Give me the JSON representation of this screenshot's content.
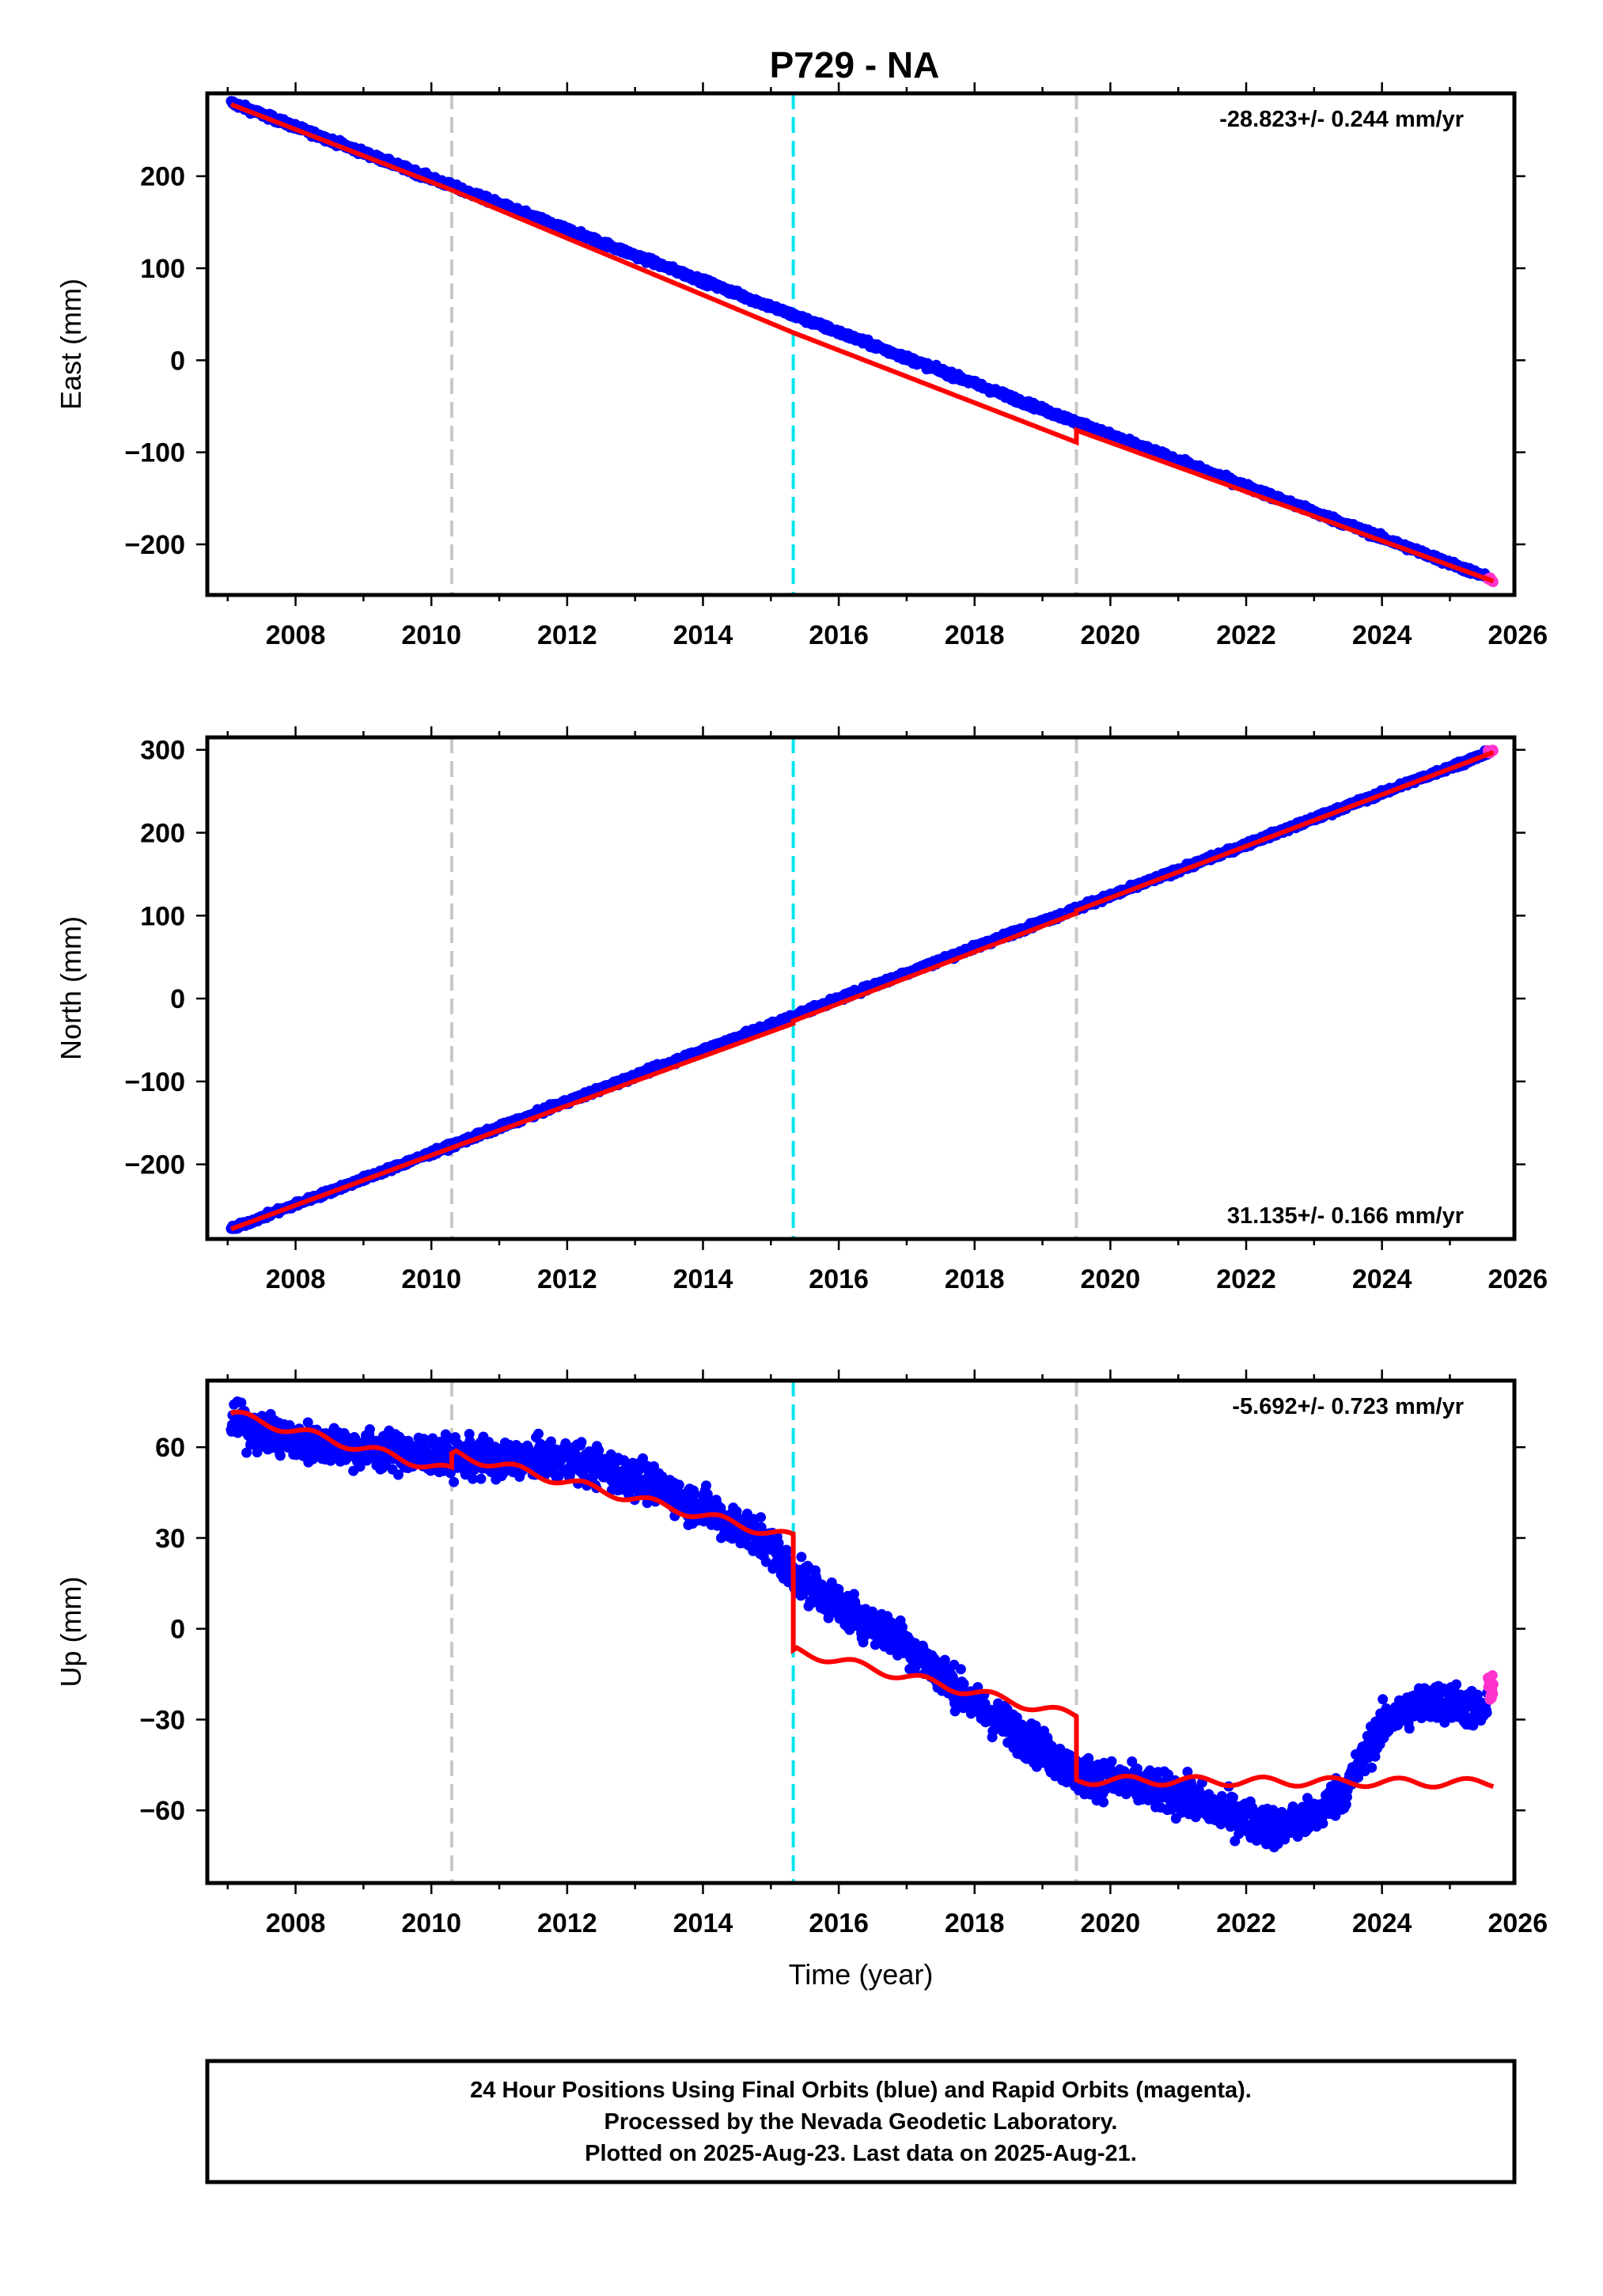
{
  "title": "P729 - NA",
  "colors": {
    "final_orbits": "#0000ff",
    "rapid_orbits": "#ff33cc",
    "model": "#ff0000",
    "equipment_change": "#c8c8c8",
    "earthquake": "#00e5ee"
  },
  "chart_data": [
    {
      "type": "scatter",
      "name": "east",
      "ylabel": "East (mm)",
      "xlim": [
        2006.7,
        2025.95
      ],
      "ylim": [
        -255,
        290
      ],
      "xticks": [
        2008,
        2010,
        2012,
        2014,
        2016,
        2018,
        2020,
        2022,
        2024,
        2026
      ],
      "yticks": [
        -200,
        -100,
        0,
        100,
        200
      ],
      "rate": "-28.823+/- 0.244 mm/yr",
      "vertical_lines": [
        {
          "x": 2010.3,
          "style": "gray-dashed"
        },
        {
          "x": 2015.33,
          "style": "cyan-dashed"
        },
        {
          "x": 2019.5,
          "style": "gray-dashed"
        }
      ],
      "series": [
        {
          "type": "points",
          "color": "final",
          "x_range": [
            2007.05,
            2025.55
          ],
          "y_start": 280,
          "y_end": -236,
          "scatter": 3
        },
        {
          "type": "points",
          "color": "rapid",
          "x_range": [
            2025.56,
            2025.64
          ],
          "y_start": -236,
          "y_end": -240,
          "scatter": 2
        },
        {
          "type": "line",
          "color": "model",
          "x": [
            2007.05,
            2010.3,
            2010.3,
            2015.33,
            2015.33,
            2019.5,
            2019.5,
            2025.64
          ],
          "y": [
            278,
            185,
            185,
            30,
            30,
            -89,
            -76,
            -240
          ]
        }
      ]
    },
    {
      "type": "scatter",
      "name": "north",
      "ylabel": "North (mm)",
      "xlim": [
        2006.7,
        2025.95
      ],
      "ylim": [
        -290,
        315
      ],
      "xticks": [
        2008,
        2010,
        2012,
        2014,
        2016,
        2018,
        2020,
        2022,
        2024,
        2026
      ],
      "yticks": [
        -200,
        -100,
        0,
        100,
        200,
        300
      ],
      "rate": "31.135+/- 0.166 mm/yr",
      "vertical_lines": [
        {
          "x": 2010.3,
          "style": "gray-dashed"
        },
        {
          "x": 2015.33,
          "style": "cyan-dashed"
        },
        {
          "x": 2019.5,
          "style": "gray-dashed"
        }
      ],
      "series": [
        {
          "type": "points",
          "color": "final",
          "x_range": [
            2007.05,
            2025.55
          ],
          "y_start": -278,
          "y_end": 296,
          "scatter": 3
        },
        {
          "type": "points",
          "color": "rapid",
          "x_range": [
            2025.56,
            2025.64
          ],
          "y_start": 297,
          "y_end": 300,
          "scatter": 2
        },
        {
          "type": "line",
          "color": "model",
          "x": [
            2007.05,
            2010.3,
            2010.3,
            2015.33,
            2015.33,
            2019.5,
            2019.5,
            2025.64
          ],
          "y": [
            -278,
            -180,
            -180,
            -30,
            -27,
            103,
            106,
            297
          ]
        }
      ]
    },
    {
      "type": "scatter",
      "name": "up",
      "ylabel": "Up (mm)",
      "xlabel": "Time (year)",
      "xlim": [
        2006.7,
        2025.95
      ],
      "ylim": [
        -84,
        82
      ],
      "xticks": [
        2008,
        2010,
        2012,
        2014,
        2016,
        2018,
        2020,
        2022,
        2024,
        2026
      ],
      "yticks": [
        -60,
        -30,
        0,
        30,
        60
      ],
      "rate": "-5.692+/- 0.723 mm/yr",
      "vertical_lines": [
        {
          "x": 2010.3,
          "style": "gray-dashed"
        },
        {
          "x": 2015.33,
          "style": "cyan-dashed"
        },
        {
          "x": 2019.5,
          "style": "gray-dashed"
        }
      ],
      "series": [
        {
          "type": "points",
          "color": "final",
          "x_range": [
            2007.05,
            2025.55
          ],
          "scatter": 6,
          "trend_x": [
            2007.05,
            2008,
            2010,
            2011,
            2012,
            2013,
            2014,
            2015,
            2015.33,
            2016,
            2017,
            2018,
            2019,
            2019.5,
            2020,
            2021,
            2022,
            2022.5,
            2023,
            2023.5,
            2024,
            2024.5,
            2025,
            2025.55
          ],
          "trend_y": [
            68,
            62,
            57,
            56,
            56,
            50,
            40,
            28,
            18,
            8,
            -5,
            -25,
            -40,
            -48,
            -50,
            -55,
            -63,
            -66,
            -62,
            -52,
            -32,
            -25,
            -24,
            -28
          ]
        },
        {
          "type": "points",
          "color": "rapid",
          "x_range": [
            2025.56,
            2025.64
          ],
          "trend_x": [
            2025.56,
            2025.64
          ],
          "trend_y": [
            -18,
            -20
          ],
          "scatter": 5
        },
        {
          "type": "line",
          "color": "model",
          "x": [
            2007.05,
            2010.3,
            2010.3,
            2015.33,
            2015.33,
            2019.5,
            2019.5,
            2025.64
          ],
          "y": [
            71,
            52,
            58,
            30,
            -7,
            -29,
            -50,
            -51
          ],
          "seasonal_amp": 1.5
        }
      ]
    }
  ],
  "footer": {
    "lines": [
      "24 Hour Positions Using Final Orbits (blue) and Rapid Orbits (magenta).",
      "Processed by the Nevada Geodetic Laboratory.",
      "Plotted on 2025-Aug-23. Last data on 2025-Aug-21."
    ]
  }
}
